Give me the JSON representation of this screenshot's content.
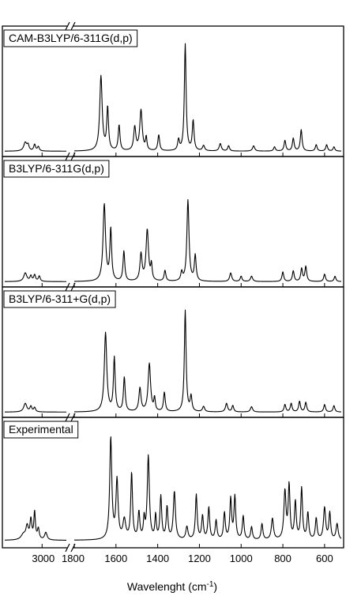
{
  "chart_data": {
    "type": "line",
    "xlabel": "Wavelenght (cm",
    "xlabel_sup": "-1",
    "xlabel_close": ")",
    "x_break": {
      "left_range": [
        3200,
        2870
      ],
      "right_range": [
        1800,
        520
      ]
    },
    "tick_labels": [
      {
        "value": 3000,
        "label": "3000",
        "segment": "left"
      },
      {
        "value": 1800,
        "label": "1800",
        "segment": "right"
      },
      {
        "value": 1600,
        "label": "1600",
        "segment": "right"
      },
      {
        "value": 1400,
        "label": "1400",
        "segment": "right"
      },
      {
        "value": 1200,
        "label": "1200",
        "segment": "right"
      },
      {
        "value": 1000,
        "label": "1000",
        "segment": "right"
      },
      {
        "value": 800,
        "label": "800",
        "segment": "right"
      },
      {
        "value": 600,
        "label": "600",
        "segment": "right"
      }
    ],
    "panels": [
      {
        "name": "CAM-B3LYP/6-311G(d,p)",
        "baseline": 0.02,
        "peaks_left": [
          [
            3090,
            0.08,
            10
          ],
          [
            3075,
            0.05,
            6
          ],
          [
            3040,
            0.06,
            6
          ],
          [
            3020,
            0.04,
            6
          ]
        ],
        "peaks_right": [
          [
            1672,
            0.7,
            7
          ],
          [
            1640,
            0.4,
            5
          ],
          [
            1585,
            0.24,
            5
          ],
          [
            1510,
            0.22,
            6
          ],
          [
            1480,
            0.38,
            7
          ],
          [
            1455,
            0.12,
            4
          ],
          [
            1395,
            0.15,
            5
          ],
          [
            1300,
            0.1,
            5
          ],
          [
            1268,
            1.0,
            5
          ],
          [
            1230,
            0.28,
            5
          ],
          [
            1180,
            0.05,
            6
          ],
          [
            1100,
            0.07,
            6
          ],
          [
            1060,
            0.05,
            5
          ],
          [
            940,
            0.05,
            6
          ],
          [
            840,
            0.04,
            5
          ],
          [
            790,
            0.1,
            5
          ],
          [
            750,
            0.12,
            5
          ],
          [
            712,
            0.2,
            5
          ],
          [
            640,
            0.06,
            5
          ],
          [
            590,
            0.06,
            5
          ],
          [
            555,
            0.04,
            5
          ]
        ]
      },
      {
        "name": "B3LYP/6-311G(d,p)",
        "baseline": 0.02,
        "peaks_left": [
          [
            3090,
            0.08,
            10
          ],
          [
            3060,
            0.05,
            6
          ],
          [
            3040,
            0.06,
            6
          ],
          [
            3015,
            0.05,
            6
          ]
        ],
        "peaks_right": [
          [
            1656,
            0.72,
            7
          ],
          [
            1625,
            0.48,
            5
          ],
          [
            1562,
            0.28,
            5
          ],
          [
            1480,
            0.25,
            6
          ],
          [
            1450,
            0.48,
            7
          ],
          [
            1430,
            0.14,
            4
          ],
          [
            1365,
            0.1,
            5
          ],
          [
            1285,
            0.08,
            5
          ],
          [
            1255,
            0.76,
            6
          ],
          [
            1220,
            0.24,
            5
          ],
          [
            1050,
            0.08,
            6
          ],
          [
            1000,
            0.05,
            5
          ],
          [
            950,
            0.05,
            6
          ],
          [
            800,
            0.09,
            5
          ],
          [
            750,
            0.1,
            5
          ],
          [
            710,
            0.12,
            5
          ],
          [
            690,
            0.14,
            5
          ],
          [
            600,
            0.07,
            5
          ],
          [
            550,
            0.05,
            5
          ]
        ]
      },
      {
        "name": "B3LYP/6-311+G(d,p)",
        "baseline": 0.02,
        "peaks_left": [
          [
            3090,
            0.08,
            10
          ],
          [
            3060,
            0.05,
            6
          ],
          [
            3040,
            0.04,
            6
          ]
        ],
        "peaks_right": [
          [
            1650,
            0.74,
            7
          ],
          [
            1608,
            0.5,
            5
          ],
          [
            1560,
            0.32,
            5
          ],
          [
            1485,
            0.22,
            6
          ],
          [
            1440,
            0.45,
            7
          ],
          [
            1415,
            0.12,
            4
          ],
          [
            1368,
            0.18,
            5
          ],
          [
            1268,
            0.95,
            5
          ],
          [
            1240,
            0.14,
            5
          ],
          [
            1180,
            0.05,
            6
          ],
          [
            1070,
            0.08,
            6
          ],
          [
            1040,
            0.06,
            5
          ],
          [
            950,
            0.05,
            6
          ],
          [
            790,
            0.07,
            5
          ],
          [
            760,
            0.08,
            5
          ],
          [
            720,
            0.1,
            5
          ],
          [
            690,
            0.09,
            5
          ],
          [
            600,
            0.07,
            5
          ],
          [
            555,
            0.06,
            5
          ]
        ]
      },
      {
        "name": "Experimental",
        "baseline": 0.04,
        "peaks_left": [
          [
            3100,
            0.05,
            15
          ],
          [
            3080,
            0.12,
            8
          ],
          [
            3060,
            0.18,
            6
          ],
          [
            3040,
            0.25,
            5
          ],
          [
            3020,
            0.1,
            6
          ],
          [
            2980,
            0.07,
            8
          ]
        ],
        "peaks_right": [
          [
            1625,
            0.95,
            6
          ],
          [
            1595,
            0.55,
            6
          ],
          [
            1560,
            0.18,
            8
          ],
          [
            1525,
            0.62,
            5
          ],
          [
            1490,
            0.25,
            5
          ],
          [
            1465,
            0.18,
            4
          ],
          [
            1445,
            0.78,
            6
          ],
          [
            1410,
            0.22,
            4
          ],
          [
            1385,
            0.4,
            5
          ],
          [
            1355,
            0.3,
            5
          ],
          [
            1320,
            0.45,
            6
          ],
          [
            1260,
            0.12,
            6
          ],
          [
            1215,
            0.42,
            5
          ],
          [
            1185,
            0.22,
            5
          ],
          [
            1155,
            0.3,
            5
          ],
          [
            1120,
            0.18,
            5
          ],
          [
            1080,
            0.25,
            5
          ],
          [
            1050,
            0.38,
            5
          ],
          [
            1030,
            0.4,
            5
          ],
          [
            990,
            0.22,
            5
          ],
          [
            950,
            0.12,
            5
          ],
          [
            900,
            0.15,
            5
          ],
          [
            850,
            0.2,
            6
          ],
          [
            790,
            0.45,
            6
          ],
          [
            770,
            0.5,
            5
          ],
          [
            740,
            0.35,
            5
          ],
          [
            710,
            0.48,
            5
          ],
          [
            680,
            0.25,
            5
          ],
          [
            640,
            0.2,
            5
          ],
          [
            600,
            0.3,
            6
          ],
          [
            575,
            0.25,
            5
          ],
          [
            540,
            0.15,
            6
          ]
        ]
      }
    ]
  }
}
